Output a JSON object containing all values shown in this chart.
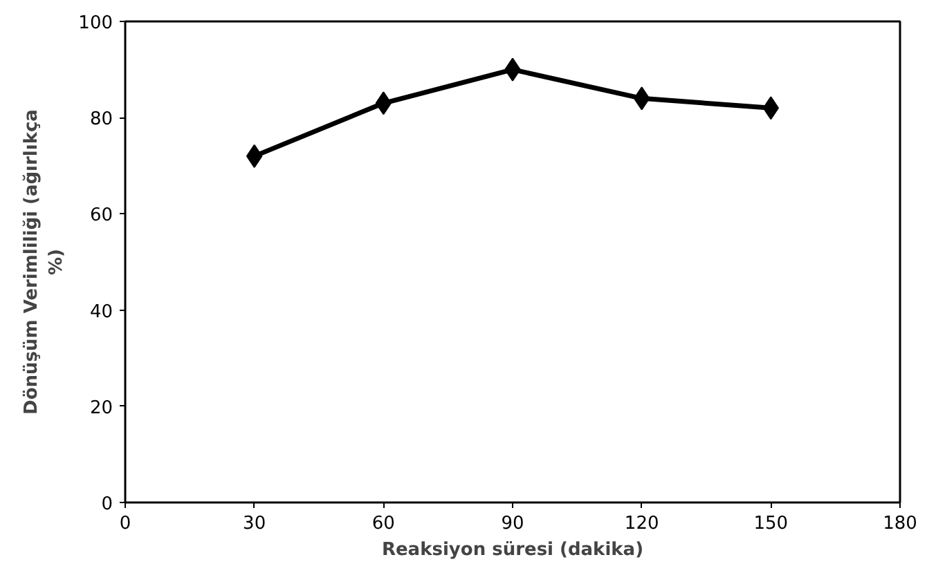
{
  "chart_data": {
    "type": "line",
    "xlabel": "Reaksiyon süresi (dakika)",
    "ylabel": "Dönüşüm Verimliliği (ağırlıkça %)",
    "x": [
      30,
      60,
      90,
      120,
      150
    ],
    "series": [
      {
        "color": "#000000",
        "values": [
          72,
          83,
          90,
          84,
          82
        ]
      }
    ],
    "xlim": [
      0,
      180
    ],
    "xticks": [
      0,
      30,
      60,
      90,
      120,
      150,
      180
    ],
    "ylim": [
      0,
      100
    ],
    "yticks": [
      0,
      20,
      40,
      60,
      80,
      100
    ],
    "marker": "diamond",
    "line_style": "solid",
    "grid": false
  }
}
